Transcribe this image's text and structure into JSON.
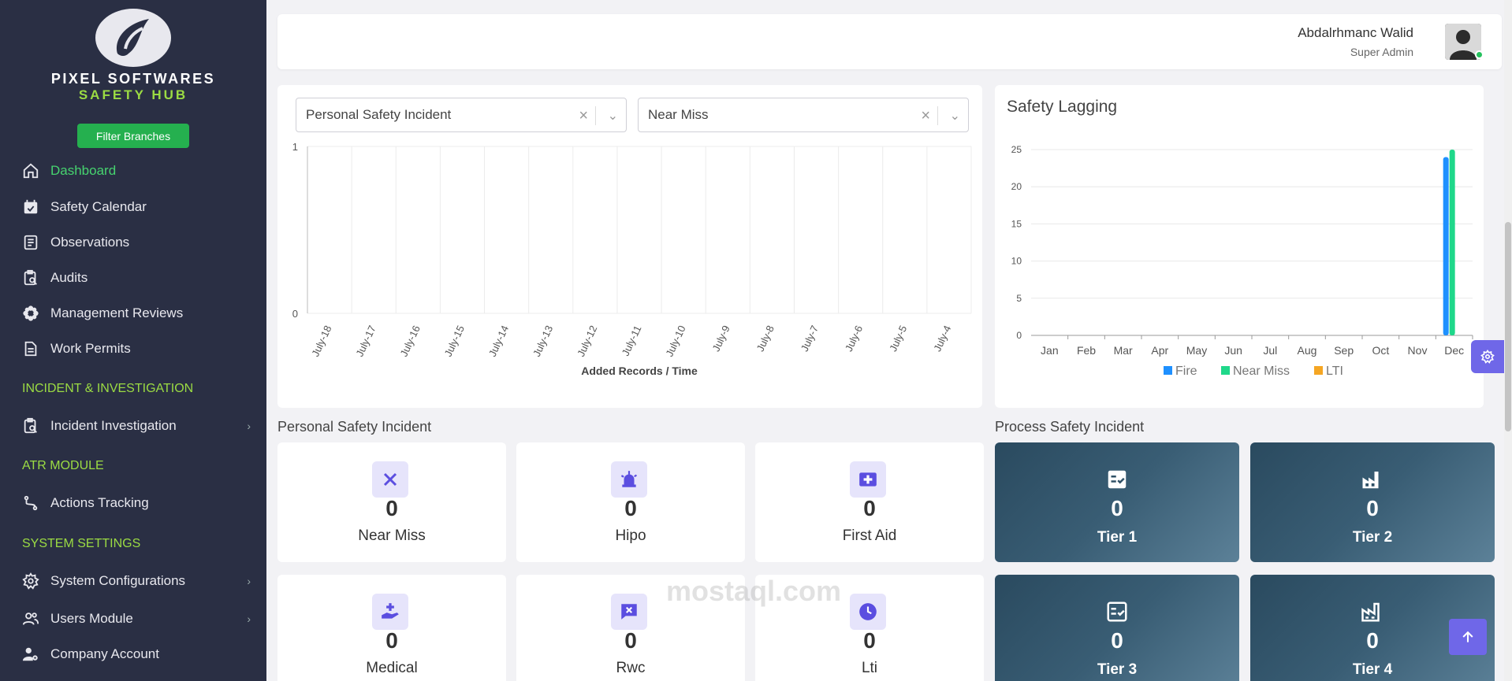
{
  "brand": {
    "name": "PIXEL SOFTWARES",
    "subtitle": "SAFETY HUB"
  },
  "sidebar": {
    "filter_button": "Filter Branches",
    "items": [
      {
        "label": "Dashboard",
        "icon": "home-icon",
        "active": true
      },
      {
        "label": "Safety Calendar",
        "icon": "calendar-icon"
      },
      {
        "label": "Observations",
        "icon": "document-icon"
      },
      {
        "label": "Audits",
        "icon": "clipboard-search-icon"
      },
      {
        "label": "Management Reviews",
        "icon": "flower-icon"
      },
      {
        "label": "Work Permits",
        "icon": "file-icon"
      }
    ],
    "sections": [
      {
        "title": "INCIDENT & INVESTIGATION",
        "items": [
          {
            "label": "Incident Investigation",
            "icon": "clipboard-search-icon",
            "has_children": true
          }
        ]
      },
      {
        "title": "ATR MODULE",
        "items": [
          {
            "label": "Actions Tracking",
            "icon": "route-icon"
          }
        ]
      },
      {
        "title": "SYSTEM SETTINGS",
        "items": [
          {
            "label": "System Configurations",
            "icon": "gear-icon",
            "has_children": true
          },
          {
            "label": "Users Module",
            "icon": "users-icon",
            "has_children": true
          },
          {
            "label": "Company Account",
            "icon": "user-gear-icon"
          }
        ]
      }
    ]
  },
  "header": {
    "user_name": "Abdalrhmanc Walid",
    "user_role": "Super Admin"
  },
  "filters": {
    "category": "Personal Safety Incident",
    "type": "Near Miss"
  },
  "chart_data": [
    {
      "type": "line",
      "title": "",
      "xlabel": "Added Records / Time",
      "ylabel": "",
      "categories": [
        "July-18",
        "July-17",
        "July-16",
        "July-15",
        "July-14",
        "July-13",
        "July-12",
        "July-11",
        "July-10",
        "July-9",
        "July-8",
        "July-7",
        "July-6",
        "July-5",
        "July-4"
      ],
      "yticks": [
        "1",
        "0"
      ],
      "ylim": [
        0,
        1
      ],
      "series": [],
      "grid": true
    },
    {
      "type": "bar",
      "title": "Safety Lagging",
      "categories": [
        "Jan",
        "Feb",
        "Mar",
        "Apr",
        "May",
        "Jun",
        "Jul",
        "Aug",
        "Sep",
        "Oct",
        "Nov",
        "Dec"
      ],
      "yticks": [
        0,
        5,
        10,
        15,
        20,
        25
      ],
      "ylim": [
        0,
        25
      ],
      "legend_position": "bottom",
      "series": [
        {
          "name": "Fire",
          "color": "#1e90ff",
          "values": [
            0,
            0,
            0,
            0,
            0,
            0,
            0,
            0,
            0,
            0,
            0,
            24
          ]
        },
        {
          "name": "Near Miss",
          "color": "#1fd88a",
          "values": [
            0,
            0,
            0,
            0,
            0,
            0,
            0,
            0,
            0,
            0,
            0,
            25
          ]
        },
        {
          "name": "LTI",
          "color": "#f5a623",
          "values": [
            0,
            0,
            0,
            0,
            0,
            0,
            0,
            0,
            0,
            0,
            0,
            0
          ]
        }
      ],
      "grid": true
    }
  ],
  "personal": {
    "title": "Personal Safety Incident",
    "cards": [
      {
        "label": "Near Miss",
        "value": "0",
        "icon": "x-icon"
      },
      {
        "label": "Hipo",
        "value": "0",
        "icon": "siren-icon"
      },
      {
        "label": "First Aid",
        "value": "0",
        "icon": "first-aid-icon"
      },
      {
        "label": "Medical",
        "value": "0",
        "icon": "medical-hand-icon"
      },
      {
        "label": "Rwc",
        "value": "0",
        "icon": "message-x-icon"
      },
      {
        "label": "Lti",
        "value": "0",
        "icon": "clock-icon"
      }
    ]
  },
  "process": {
    "title": "Process Safety Incident",
    "cards": [
      {
        "label": "Tier 1",
        "value": "0",
        "icon": "checklist-icon"
      },
      {
        "label": "Tier 2",
        "value": "0",
        "icon": "factory-icon"
      },
      {
        "label": "Tier 3",
        "value": "0",
        "icon": "checklist-icon"
      },
      {
        "label": "Tier 4",
        "value": "0",
        "icon": "factory-icon"
      }
    ]
  },
  "watermark": "mostaql.com",
  "colors": {
    "sidebar_bg": "#2a2f44",
    "active": "#46d36f",
    "accent": "#6f67e8",
    "tier_gradient": "#395d74"
  }
}
